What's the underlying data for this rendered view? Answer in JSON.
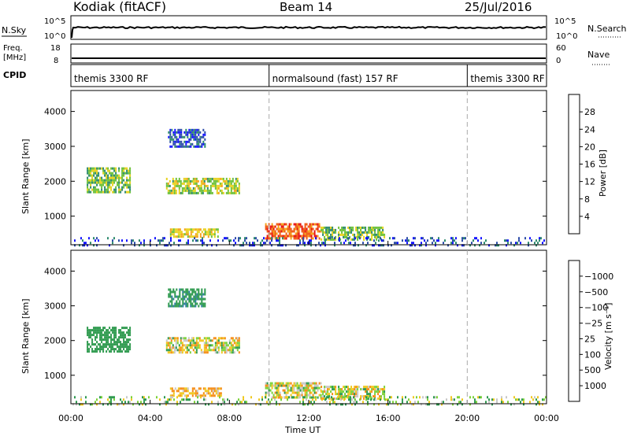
{
  "header": {
    "station": "Kodiak (fitACF)",
    "beam": "Beam 14",
    "date": "25/Jul/2016"
  },
  "top_panels": {
    "nsky": {
      "label": "N.Sky",
      "tick_top": "10^5",
      "tick_bottom": "10^0",
      "right_label": "N.Search",
      "right_tick_top": "10^5",
      "right_tick_bottom": "10^0"
    },
    "freq": {
      "label_line1": "Freq.",
      "label_line2": "[MHz]",
      "tick_top": "18",
      "tick_bottom": "8",
      "right_label": "Nave",
      "right_tick_top": "60",
      "right_tick_bottom": "0"
    },
    "cpid": {
      "label": "CPID",
      "segments": [
        {
          "name": "themis 3300 RF",
          "start_h": 0,
          "end_h": 10
        },
        {
          "name": "normalsound (fast) 157 RF",
          "start_h": 10,
          "end_h": 20
        },
        {
          "name": "themis 3300 RF",
          "start_h": 20,
          "end_h": 24
        }
      ]
    }
  },
  "x_axis": {
    "title": "Time UT",
    "ticks": [
      "00:00",
      "04:00",
      "08:00",
      "12:00",
      "16:00",
      "20:00",
      "00:00"
    ],
    "tick_hours": [
      0,
      4,
      8,
      12,
      16,
      20,
      24
    ]
  },
  "y_axis": {
    "title": "Slant Range [km]",
    "ticks": [
      "1000",
      "2000",
      "3000",
      "4000"
    ],
    "tick_values": [
      1000,
      2000,
      3000,
      4000
    ],
    "range": [
      180,
      4600
    ]
  },
  "power_scale": {
    "title": "Power [dB]",
    "labels": [
      "4",
      "8",
      "12",
      "16",
      "20",
      "24",
      "28"
    ],
    "colors": [
      "#1414ff",
      "#2d4da8",
      "#2e8b6e",
      "#6dc13a",
      "#e8d21e",
      "#f5a21a",
      "#f05a14",
      "#e81414"
    ]
  },
  "velocity_scale": {
    "title": "Velocity [m s⁻¹]",
    "labels": [
      "1000",
      "500",
      "100",
      "25",
      "−25",
      "−100",
      "−500",
      "−1000"
    ],
    "colors": [
      "#2846c8",
      "#2d7d9e",
      "#2e9a4e",
      "#7cd23a",
      "#c8c8c8",
      "#f0c81e",
      "#f58c14",
      "#f05014",
      "#e81414"
    ]
  },
  "chart_data": {
    "type": "heatmap",
    "xlabel": "Time UT",
    "ylabel": "Slant Range [km]",
    "xlim_hours": [
      0,
      24
    ],
    "ylim_km": [
      180,
      4600
    ],
    "panels": [
      {
        "name": "Power",
        "unit": "dB",
        "regions": [
          {
            "t0": 0.8,
            "t1": 3.0,
            "r0": 1700,
            "r1": 2400,
            "value": 14
          },
          {
            "t0": 4.8,
            "t1": 8.5,
            "r0": 1650,
            "r1": 2100,
            "value": 16
          },
          {
            "t0": 5.0,
            "t1": 7.6,
            "r0": 400,
            "r1": 650,
            "value": 18
          },
          {
            "t0": 9.8,
            "t1": 12.6,
            "r0": 350,
            "r1": 800,
            "value": 26
          },
          {
            "t0": 12.6,
            "t1": 15.8,
            "r0": 350,
            "r1": 700,
            "value": 14
          },
          {
            "t0": 4.9,
            "t1": 6.8,
            "r0": 3000,
            "r1": 3500,
            "value": 6
          },
          {
            "t0": 0.0,
            "t1": 24.0,
            "r0": 180,
            "r1": 400,
            "value": 6
          }
        ]
      },
      {
        "name": "Velocity",
        "unit": "m s-1",
        "regions": [
          {
            "t0": 0.8,
            "t1": 3.0,
            "r0": 1700,
            "r1": 2400,
            "value": 300
          },
          {
            "t0": 4.8,
            "t1": 8.5,
            "r0": 1650,
            "r1": 2100,
            "value": 0
          },
          {
            "t0": 5.0,
            "t1": 7.6,
            "r0": 400,
            "r1": 650,
            "value": -150
          },
          {
            "t0": 9.8,
            "t1": 12.6,
            "r0": 350,
            "r1": 800,
            "value": 0
          },
          {
            "t0": 12.6,
            "t1": 15.8,
            "r0": 350,
            "r1": 700,
            "value": 0
          },
          {
            "t0": 4.9,
            "t1": 6.8,
            "r0": 3000,
            "r1": 3500,
            "value": 400
          },
          {
            "t0": 0.0,
            "t1": 24.0,
            "r0": 180,
            "r1": 400,
            "value": 60
          }
        ]
      }
    ]
  }
}
